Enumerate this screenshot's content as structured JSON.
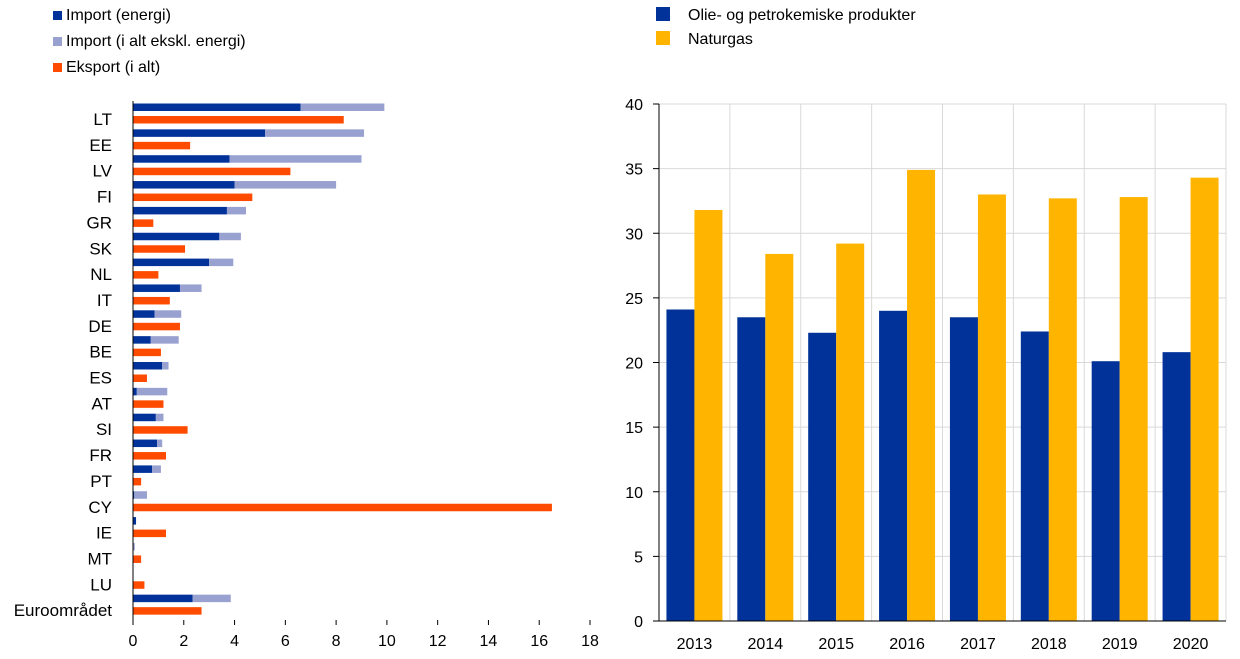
{
  "chart_data": [
    {
      "type": "bar",
      "orientation": "horizontal",
      "categories": [
        "LT",
        "EE",
        "LV",
        "FI",
        "GR",
        "SK",
        "NL",
        "IT",
        "DE",
        "BE",
        "ES",
        "AT",
        "SI",
        "FR",
        "PT",
        "CY",
        "IE",
        "MT",
        "LU",
        "Euroområdet"
      ],
      "series": [
        {
          "name": "Import (energi)",
          "color": "#003299",
          "values": [
            6.6,
            5.2,
            3.8,
            4.0,
            3.7,
            3.4,
            3.0,
            1.85,
            0.85,
            0.7,
            1.15,
            0.15,
            0.9,
            0.95,
            0.75,
            0.05,
            0.12,
            0.02,
            0.0,
            2.35
          ]
        },
        {
          "name": "Import (i alt ekskl. energi)",
          "color": "#98A1D0",
          "values": [
            3.3,
            3.9,
            5.2,
            4.0,
            0.75,
            0.85,
            0.95,
            0.85,
            1.05,
            1.1,
            0.25,
            1.2,
            0.3,
            0.2,
            0.35,
            0.5,
            0.0,
            0.05,
            0.0,
            1.5
          ]
        },
        {
          "name": "Eksport (i alt)",
          "color": "#FF4B00",
          "values": [
            8.3,
            2.25,
            6.2,
            4.7,
            0.8,
            2.05,
            1.0,
            1.45,
            1.85,
            1.1,
            0.55,
            1.2,
            2.15,
            1.3,
            0.32,
            16.5,
            1.3,
            0.32,
            0.45,
            2.7
          ]
        }
      ],
      "xlim": [
        0,
        18
      ],
      "xticks": [
        0,
        2,
        4,
        6,
        8,
        10,
        12,
        14,
        16,
        18
      ],
      "stacked_series": [
        "Import (energi)",
        "Import (i alt ekskl. energi)"
      ],
      "legend_placement": "top-left",
      "grid": false
    },
    {
      "type": "bar",
      "categories": [
        "2013",
        "2014",
        "2015",
        "2016",
        "2017",
        "2018",
        "2019",
        "2020"
      ],
      "series": [
        {
          "name": "Olie- og petrokemiske produkter",
          "color": "#003299",
          "values": [
            24.1,
            23.5,
            22.3,
            24.0,
            23.5,
            22.4,
            20.1,
            20.8
          ]
        },
        {
          "name": "Naturgas",
          "color": "#FFB400",
          "values": [
            31.8,
            28.4,
            29.2,
            34.9,
            33.0,
            32.7,
            32.8,
            34.3
          ]
        }
      ],
      "ylim": [
        0,
        40
      ],
      "yticks": [
        0,
        5,
        10,
        15,
        20,
        25,
        30,
        35,
        40
      ],
      "legend_placement": "top-left",
      "grid": true
    }
  ]
}
